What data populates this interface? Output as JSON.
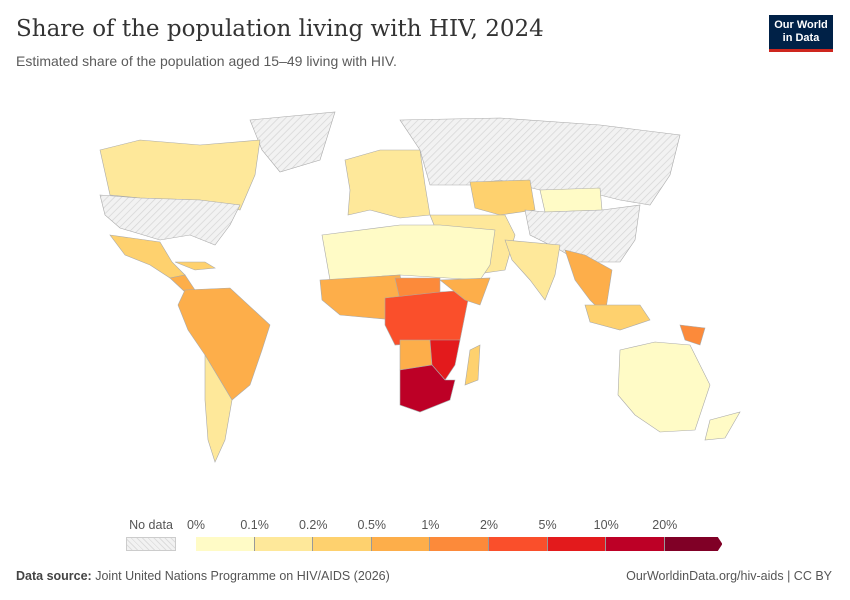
{
  "header": {
    "title": "Share of the population living with HIV, 2024",
    "subtitle": "Estimated share of the population aged 15–49 living with HIV.",
    "logo": "Our World in Data"
  },
  "legend": {
    "no_data_label": "No data",
    "no_data_color": "#e8e8e8",
    "bins": [
      {
        "label": "0%",
        "color": "#fffbc6"
      },
      {
        "label": "0.1%",
        "color": "#fee89a"
      },
      {
        "label": "0.2%",
        "color": "#fed16e"
      },
      {
        "label": "0.5%",
        "color": "#fdae4a"
      },
      {
        "label": "1%",
        "color": "#fc8a3a"
      },
      {
        "label": "2%",
        "color": "#fa4f2b"
      },
      {
        "label": "5%",
        "color": "#e31a1c"
      },
      {
        "label": "10%",
        "color": "#bd0026"
      },
      {
        "label": "20%",
        "color": "#800026"
      }
    ]
  },
  "footer": {
    "source_label": "Data source:",
    "source": "Joint United Nations Programme on HIV/AIDS (2026)",
    "url": "OurWorldinData.org/hiv-aids | CC BY"
  }
}
